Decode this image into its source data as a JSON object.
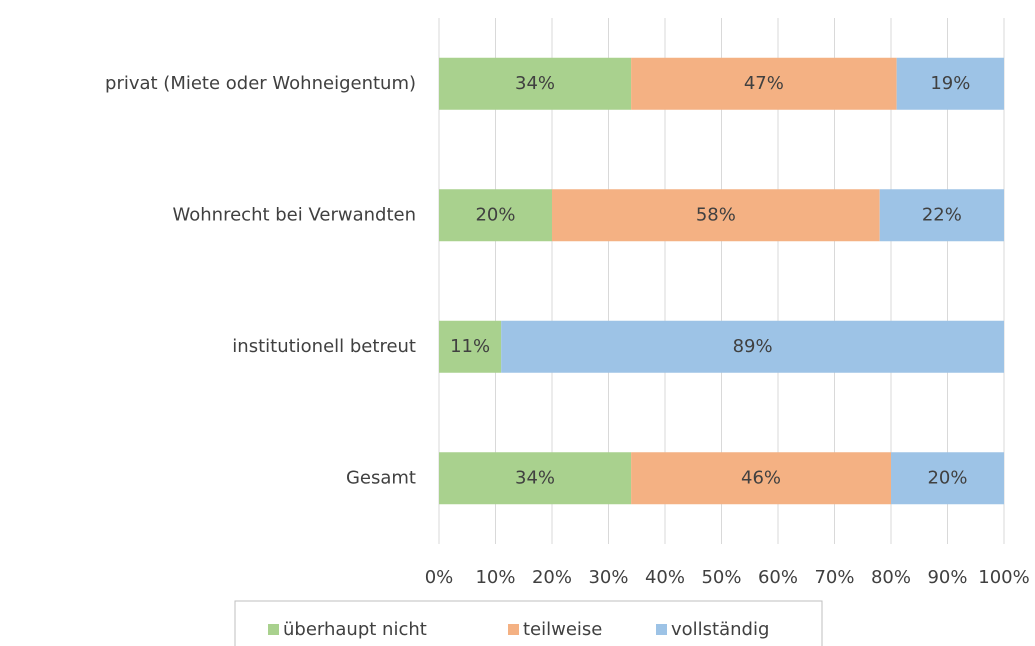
{
  "chart_data": {
    "type": "stacked-bar-horizontal",
    "categories": [
      "privat (Miete oder Wohneigentum)",
      "Wohnrecht bei Verwandten",
      "institutionell betreut",
      "Gesamt"
    ],
    "series": [
      {
        "name": "überhaupt nicht",
        "color": "#a9d18e",
        "values": [
          34,
          20,
          11,
          34
        ],
        "value_labels": [
          "34%",
          "20%",
          "11%",
          "34%"
        ]
      },
      {
        "name": "teilweise",
        "color": "#f4b183",
        "values": [
          47,
          58,
          0,
          46
        ],
        "value_labels": [
          "47%",
          "58%",
          null,
          "46%"
        ]
      },
      {
        "name": "vollständig",
        "color": "#9dc3e6",
        "values": [
          19,
          22,
          89,
          20
        ],
        "value_labels": [
          "19%",
          "22%",
          "89%",
          "20%"
        ]
      }
    ],
    "xlim": [
      0,
      100
    ],
    "xticks": [
      {
        "value": 0,
        "label": "0%"
      },
      {
        "value": 10,
        "label": "10%"
      },
      {
        "value": 20,
        "label": "20%"
      },
      {
        "value": 30,
        "label": "30%"
      },
      {
        "value": 40,
        "label": "40%"
      },
      {
        "value": 50,
        "label": "50%"
      },
      {
        "value": 60,
        "label": "60%"
      },
      {
        "value": 70,
        "label": "70%"
      },
      {
        "value": 80,
        "label": "80%"
      },
      {
        "value": 90,
        "label": "90%"
      },
      {
        "value": 100,
        "label": "100%"
      }
    ],
    "grid": true,
    "legend": "bottom"
  }
}
